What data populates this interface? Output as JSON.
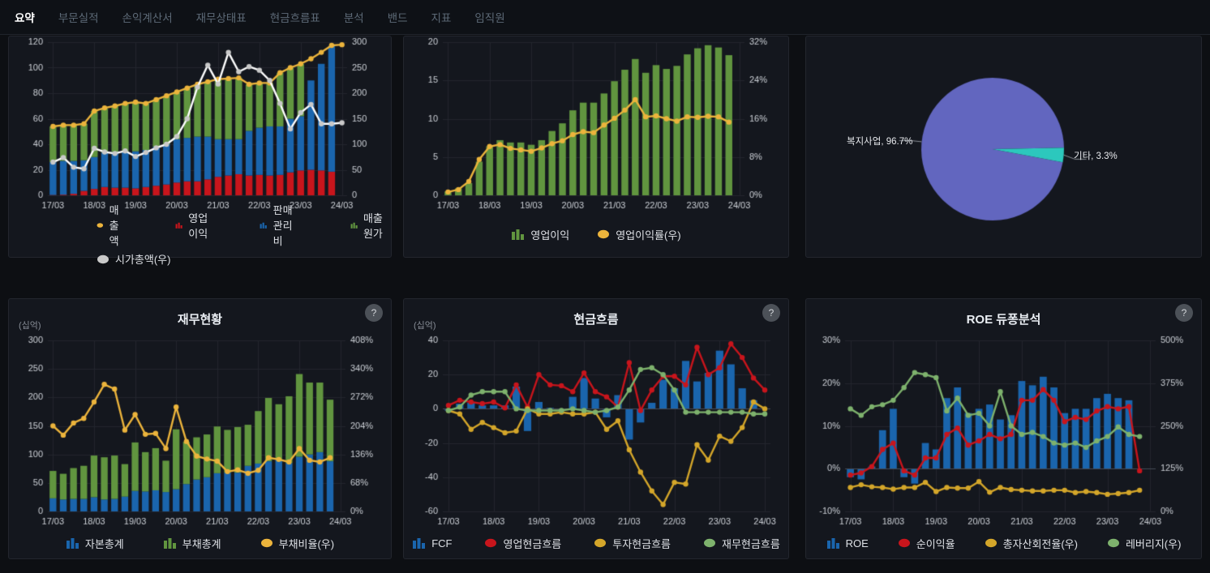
{
  "nav": {
    "tabs": [
      {
        "label": "요약",
        "active": true
      },
      {
        "label": "부문실적",
        "active": false
      },
      {
        "label": "손익계산서",
        "active": false
      },
      {
        "label": "재무상태표",
        "active": false
      },
      {
        "label": "현금흐름표",
        "active": false
      },
      {
        "label": "분석",
        "active": false
      },
      {
        "label": "밴드",
        "active": false
      },
      {
        "label": "지표",
        "active": false
      },
      {
        "label": "임직원",
        "active": false
      }
    ]
  },
  "colors": {
    "yellow": "#ECB43C",
    "red": "#C8151C",
    "blue": "#1A65AD",
    "green": "#61953F",
    "mustard": "#D4A62A",
    "light_green": "#7EB26D",
    "white_line": "#FFFFFF",
    "gray_marker": "#C9C9C9",
    "pie_main": "#6266BF",
    "pie_other": "#2CC8BD",
    "leader_line": "#8A8F96"
  },
  "panels": [
    {
      "id": "revenue-cost"
    },
    {
      "id": "operating-profit"
    },
    {
      "id": "business-mix"
    },
    {
      "id": "financial-status",
      "title": "재무현황",
      "unit": "(십억)",
      "help": "?"
    },
    {
      "id": "cash-flow",
      "title": "현금흐름",
      "unit": "(십억)",
      "help": "?"
    },
    {
      "id": "roe-dupont",
      "title": "ROE 듀퐁분석",
      "help": "?"
    }
  ],
  "chart_data": [
    {
      "type": "bar",
      "x_labels": [
        "17/03",
        "18/03",
        "19/03",
        "20/03",
        "21/03",
        "22/03",
        "23/03",
        "24/03"
      ],
      "slots": 29,
      "label_slots": [
        0,
        4,
        8,
        12,
        16,
        20,
        24,
        28
      ],
      "left_axis": {
        "min": 0,
        "max": 120,
        "ticks": [
          0,
          20,
          40,
          60,
          80,
          100,
          120
        ],
        "suffix": ""
      },
      "right_axis": {
        "min": 0,
        "max": 300,
        "ticks": [
          0,
          50,
          100,
          150,
          200,
          250,
          300
        ],
        "suffix": ""
      },
      "legend_rows": [
        [
          3,
          0,
          1,
          2
        ],
        [
          4
        ]
      ],
      "series": [
        {
          "name": "영업이익",
          "type": "bar",
          "color": "red",
          "values": [
            0.3,
            0.5,
            1.2,
            3.5,
            5,
            6.5,
            6,
            6,
            5.5,
            6.5,
            7.5,
            8.5,
            10,
            11,
            11,
            12.5,
            14.5,
            15.5,
            16.5,
            15.5,
            16,
            15.5,
            16,
            18,
            19.5,
            20,
            19.5,
            18.5
          ]
        },
        {
          "name": "판매관리비",
          "type": "bar",
          "color": "blue",
          "values": [
            25.7,
            26.5,
            25.8,
            24,
            25,
            27,
            28,
            28,
            29,
            29,
            30.5,
            31.5,
            34,
            34,
            35,
            33.5,
            29.5,
            28.5,
            27.5,
            35,
            37,
            38.5,
            38,
            42,
            42.5,
            70,
            83.5,
            98.5
          ]
        },
        {
          "name": "매출원가",
          "type": "bar",
          "color": "green",
          "values": [
            28,
            28,
            28,
            28.5,
            36,
            34.5,
            36,
            38,
            38.5,
            36.5,
            37,
            38,
            37,
            39,
            41,
            43,
            47,
            47,
            48,
            36.5,
            35,
            34,
            42,
            40,
            41,
            0,
            0,
            0
          ]
        },
        {
          "name": "매출액",
          "type": "line",
          "axis": "left",
          "color": "yellow",
          "values": [
            54,
            55,
            55,
            56,
            66,
            68.5,
            70,
            72,
            73,
            72,
            75,
            78,
            81,
            84,
            87,
            89,
            91,
            91.5,
            92,
            87,
            88,
            88,
            96,
            100,
            103,
            107,
            112,
            117.5,
            118
          ]
        },
        {
          "name": "시가총액(우)",
          "type": "line",
          "axis": "right",
          "color": "white_line",
          "marker": "gray_marker",
          "values": [
            65,
            74,
            55,
            52,
            92,
            85,
            82,
            87,
            76,
            84,
            93,
            100,
            115,
            150,
            212,
            255,
            218,
            280,
            242,
            252,
            245,
            225,
            180,
            130,
            162,
            178,
            140,
            140,
            142
          ]
        }
      ]
    },
    {
      "type": "bar",
      "x_labels": [
        "17/03",
        "18/03",
        "19/03",
        "20/03",
        "21/03",
        "22/03",
        "23/03",
        "24/03"
      ],
      "slots": 29,
      "label_slots": [
        0,
        4,
        8,
        12,
        16,
        20,
        24,
        28
      ],
      "left_axis": {
        "min": 0,
        "max": 20,
        "ticks": [
          0,
          5,
          10,
          15,
          20
        ],
        "suffix": ""
      },
      "right_axis": {
        "min": 0,
        "max": 32,
        "ticks": [
          0,
          8,
          16,
          24,
          32
        ],
        "suffix": "%"
      },
      "legend_rows": [
        [
          0,
          1
        ]
      ],
      "series": [
        {
          "name": "영업이익",
          "type": "bar",
          "color": "green",
          "values": [
            0.5,
            0.9,
            1.6,
            4.4,
            6.4,
            7.2,
            6.9,
            6.9,
            6.6,
            7.2,
            8.4,
            9.4,
            11.1,
            12.1,
            12.1,
            13.3,
            14.9,
            16.4,
            17.8,
            16.0,
            17.0,
            16.5,
            16.9,
            18.4,
            19.2,
            19.6,
            19.3,
            18.3
          ]
        },
        {
          "name": "영업이익률(우)",
          "type": "line",
          "axis": "right",
          "color": "yellow",
          "values": [
            0.7,
            1.2,
            2.9,
            7.5,
            10.2,
            10.6,
            9.8,
            9.5,
            9.2,
            9.9,
            10.8,
            11.4,
            12.7,
            13.3,
            13.1,
            14.7,
            16.1,
            17.8,
            20.0,
            16.4,
            16.6,
            16.0,
            15.5,
            16.4,
            16.3,
            16.5,
            16.4,
            15.3
          ]
        }
      ]
    },
    {
      "type": "pie",
      "slices": [
        {
          "label": "복지사업",
          "pct": 96.7,
          "display": "복지사업, 96.7%",
          "color": "pie_main"
        },
        {
          "label": "기타",
          "pct": 3.3,
          "display": "기타, 3.3%",
          "color": "pie_other"
        }
      ]
    },
    {
      "type": "bar",
      "x_labels": [
        "17/03",
        "18/03",
        "19/03",
        "20/03",
        "21/03",
        "22/03",
        "23/03",
        "24/03"
      ],
      "slots": 29,
      "label_slots": [
        0,
        4,
        8,
        12,
        16,
        20,
        24,
        28
      ],
      "left_axis": {
        "min": 0,
        "max": 300,
        "ticks": [
          0,
          50,
          100,
          150,
          200,
          250,
          300
        ],
        "suffix": ""
      },
      "right_axis": {
        "min": 0,
        "max": 408,
        "ticks": [
          0,
          68,
          136,
          204,
          272,
          340,
          408
        ],
        "suffix": "%"
      },
      "legend_rows": [
        [
          0,
          1,
          2
        ]
      ],
      "series": [
        {
          "name": "자본총계",
          "type": "bar",
          "color": "blue",
          "values": [
            23,
            21,
            22,
            22,
            25,
            21,
            22,
            26,
            36,
            35,
            37,
            34,
            39,
            48,
            56,
            60,
            67,
            68,
            68,
            80,
            84,
            88,
            91,
            85,
            96,
            100,
            104,
            88
          ]
        },
        {
          "name": "부채총계",
          "type": "bar",
          "color": "green",
          "values": [
            48,
            45,
            54,
            58,
            73,
            74,
            76,
            57,
            85,
            69,
            74,
            55,
            105,
            74,
            74,
            75,
            82,
            75,
            80,
            72,
            92,
            111,
            97,
            117,
            145,
            126,
            122,
            108
          ]
        },
        {
          "name": "부채비율(우)",
          "type": "line",
          "axis": "right",
          "color": "yellow",
          "values": [
            204,
            182,
            211,
            222,
            261,
            303,
            292,
            194,
            231,
            184,
            186,
            150,
            249,
            167,
            132,
            125,
            120,
            95,
            99,
            91,
            98,
            128,
            124,
            118,
            150,
            122,
            118,
            128
          ]
        }
      ]
    },
    {
      "type": "bar",
      "x_labels": [
        "17/03",
        "18/03",
        "19/03",
        "20/03",
        "21/03",
        "22/03",
        "23/03",
        "24/03"
      ],
      "slots": 29,
      "label_slots": [
        0,
        4,
        8,
        12,
        16,
        20,
        24,
        28
      ],
      "left_axis": {
        "min": -60,
        "max": 40,
        "ticks": [
          -60,
          -40,
          -20,
          0,
          20,
          40
        ],
        "suffix": ""
      },
      "legend_rows": [
        [
          0,
          1,
          2,
          3
        ]
      ],
      "series": [
        {
          "name": "FCF",
          "type": "bar",
          "color": "blue",
          "values": [
            -1,
            3,
            3.5,
            2,
            2,
            2,
            13,
            -13,
            4,
            0.5,
            -0.5,
            7,
            18,
            6,
            -5,
            8,
            -18,
            -8,
            3.5,
            17,
            12,
            28,
            16,
            21,
            34,
            26,
            12,
            5
          ]
        },
        {
          "name": "영업현금흐름",
          "type": "line",
          "axis": "left",
          "color": "red",
          "values": [
            2,
            5,
            4,
            3,
            4,
            0.5,
            14,
            1,
            20,
            14,
            13.5,
            10,
            21,
            10,
            7,
            1,
            27,
            -1,
            11,
            19,
            19,
            14,
            36,
            20,
            24,
            38,
            30,
            18,
            11
          ]
        },
        {
          "name": "투자현금흐름",
          "type": "line",
          "axis": "left",
          "color": "mustard",
          "values": [
            -1,
            -3,
            -12,
            -8,
            -11,
            -14,
            -13,
            0,
            -3,
            -3,
            -2,
            -3,
            -3,
            -2,
            -12,
            -7,
            -24,
            -37,
            -48,
            -56,
            -43,
            -44,
            -21,
            -30,
            -16,
            -19,
            -11,
            4,
            0
          ]
        },
        {
          "name": "재무현금흐름",
          "type": "line",
          "axis": "left",
          "color": "light_green",
          "values": [
            -1,
            1,
            8,
            10,
            10,
            10,
            0,
            -1,
            -1,
            -1,
            -1,
            0,
            -1,
            -2,
            -1,
            1,
            11,
            23,
            24,
            20,
            11,
            -2,
            -2,
            -2,
            -2,
            -2,
            -2,
            -3,
            -3
          ]
        }
      ]
    },
    {
      "type": "bar",
      "x_labels": [
        "17/03",
        "18/03",
        "19/03",
        "20/03",
        "21/03",
        "22/03",
        "23/03",
        "24/03"
      ],
      "slots": 29,
      "label_slots": [
        0,
        4,
        8,
        12,
        16,
        20,
        24,
        28
      ],
      "left_axis": {
        "min": -10,
        "max": 30,
        "ticks": [
          -10,
          0,
          10,
          20,
          30
        ],
        "suffix": "%"
      },
      "right_axis": {
        "min": 0,
        "max": 500,
        "ticks": [
          0,
          125,
          250,
          375,
          500
        ],
        "suffix": "%"
      },
      "legend_rows": [
        [
          0,
          1,
          2,
          3
        ]
      ],
      "series": [
        {
          "name": "ROE",
          "type": "bar",
          "color": "blue",
          "values": [
            -2,
            -2.5,
            0.5,
            9,
            14,
            -2,
            -3.5,
            6,
            4.5,
            16.5,
            19,
            13,
            14,
            15,
            11.5,
            12.5,
            20.5,
            19.5,
            21.5,
            19,
            13,
            14,
            14,
            16.5,
            17.5,
            16.5,
            16,
            0
          ]
        },
        {
          "name": "순이익율",
          "type": "line",
          "axis": "left",
          "color": "red",
          "values": [
            -1.5,
            -1,
            0.5,
            4.5,
            6,
            -0.5,
            -1.5,
            2.5,
            2.5,
            8,
            9.5,
            5.5,
            6.5,
            8,
            7,
            8,
            16,
            16,
            18.5,
            16,
            11,
            12,
            11.5,
            13.5,
            14.5,
            14,
            14.5,
            -0.5
          ]
        },
        {
          "name": "총자산회전율(우)",
          "type": "line",
          "axis": "right",
          "color": "mustard",
          "values": [
            70,
            78,
            72,
            70,
            65,
            70,
            70,
            85,
            58,
            70,
            68,
            68,
            87,
            56,
            70,
            64,
            62,
            60,
            60,
            62,
            62,
            55,
            58,
            55,
            50,
            52,
            55,
            62
          ]
        },
        {
          "name": "레버리지(우)",
          "type": "line",
          "axis": "right",
          "color": "light_green",
          "values": [
            300,
            281,
            306,
            312,
            325,
            362,
            406,
            400,
            391,
            294,
            331,
            281,
            287,
            250,
            350,
            250,
            225,
            231,
            219,
            200,
            194,
            200,
            187,
            206,
            219,
            247,
            225,
            219
          ]
        }
      ]
    }
  ]
}
